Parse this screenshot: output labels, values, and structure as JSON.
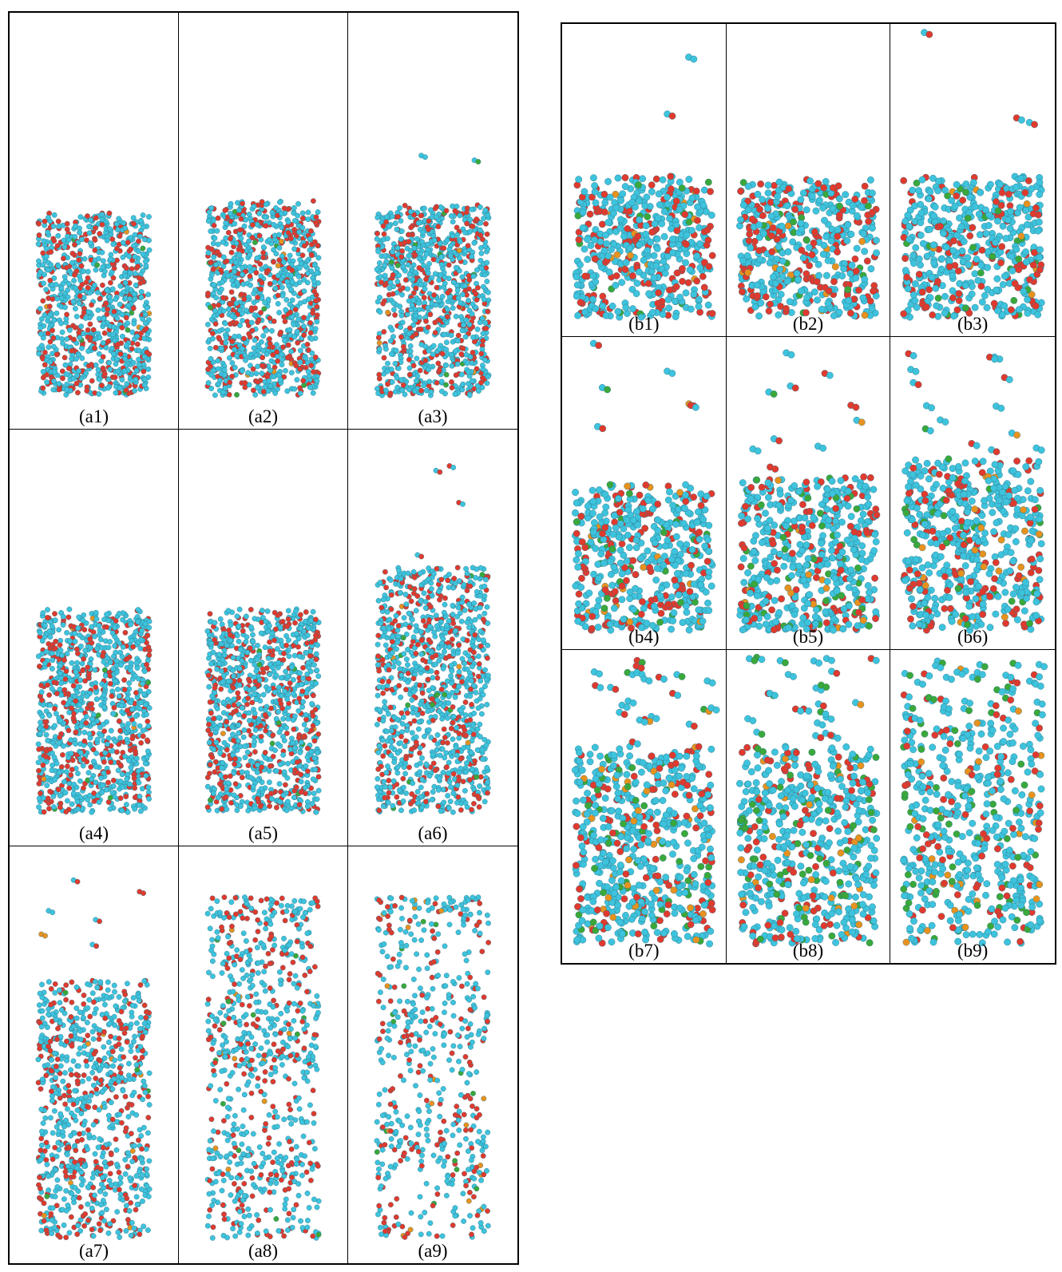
{
  "figure": {
    "group_a": {
      "labels": [
        "(a1)",
        "(a2)",
        "(a3)",
        "(a4)",
        "(a5)",
        "(a6)",
        "(a7)",
        "(a8)",
        "(a9)"
      ]
    },
    "group_b": {
      "labels": [
        "(b1)",
        "(b2)",
        "(b3)",
        "(b4)",
        "(b5)",
        "(b6)",
        "(b7)",
        "(b8)",
        "(b9)"
      ]
    },
    "atom_colors": {
      "hydrogen_like": "#3ec3dd",
      "oxygen_like": "#e03a2e",
      "accent_green": "#3aa83a",
      "accent_orange": "#e8921e"
    }
  }
}
